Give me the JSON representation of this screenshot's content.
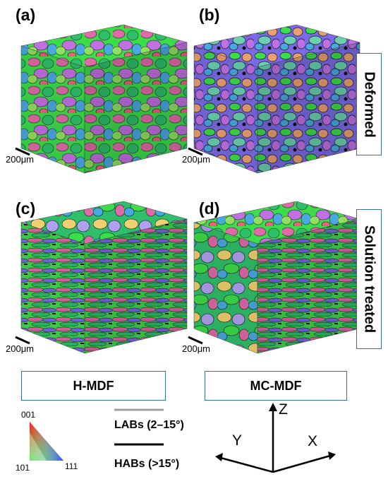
{
  "panels": [
    {
      "label": "(a)",
      "scale": "200μm"
    },
    {
      "label": "(b)",
      "scale": "200μm"
    },
    {
      "label": "(c)",
      "scale": "200μm"
    },
    {
      "label": "(d)",
      "scale": "200μm"
    }
  ],
  "rows": {
    "top": "Deformed",
    "bottom": "Solution treated"
  },
  "columns": {
    "left": "H-MDF",
    "right": "MC-MDF"
  },
  "ipf": {
    "top": "001",
    "left": "101",
    "right": "111"
  },
  "boundaries": {
    "lab": {
      "label": "LABs (2–15°)",
      "color": "#a0a0a0"
    },
    "hab": {
      "label": "HABs (>15°)",
      "color": "#000000"
    }
  },
  "axes": {
    "z": "Z",
    "y": "Y",
    "x": "X"
  },
  "colors": {
    "frame": "#3a6fa5",
    "grain_palette": [
      "#3ddc4a",
      "#2fbf6a",
      "#e06aa8",
      "#c070e0",
      "#7a6ae8",
      "#4aa8e0",
      "#e8a070",
      "#6ad0b0",
      "#f06080",
      "#90e060",
      "#b0a0f0"
    ]
  }
}
